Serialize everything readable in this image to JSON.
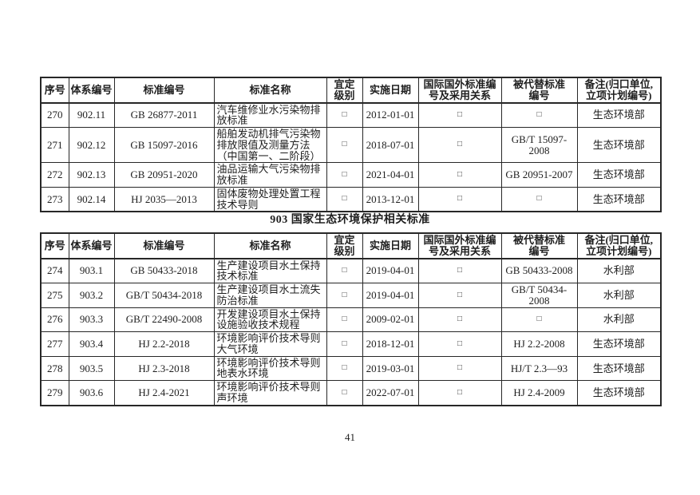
{
  "document": {
    "section_title": "903 国家生态环境保护相关标准",
    "page_number": "41"
  },
  "symbols": {
    "empty_box": "□"
  },
  "columns": [
    "序号",
    "体系编号",
    "标准编号",
    "标准名称",
    "宜定\n级别",
    "实施日期",
    "国际国外标准编\n号及采用关系",
    "被代替标准\n编号",
    "备注(归口单位,\n立项计划编号)"
  ],
  "tables": [
    {
      "section": "902",
      "rows": [
        [
          "270",
          "902.11",
          "GB 26877-2011",
          "汽车维修业水污染物排放标准",
          "□",
          "2012-01-01",
          "□",
          "□",
          "生态环境部"
        ],
        [
          "271",
          "902.12",
          "GB 15097-2016",
          "船舶发动机排气污染物排放限值及测量方法（中国第一、二阶段）",
          "□",
          "2018-07-01",
          "□",
          "GB/T 15097-2008",
          "生态环境部"
        ],
        [
          "272",
          "902.13",
          "GB 20951-2020",
          "油品运输大气污染物排放标准",
          "□",
          "2021-04-01",
          "□",
          "GB 20951-2007",
          "生态环境部"
        ],
        [
          "273",
          "902.14",
          "HJ 2035—2013",
          "固体废物处理处置工程技术导则",
          "□",
          "2013-12-01",
          "□",
          "□",
          "生态环境部"
        ]
      ]
    },
    {
      "section": "903",
      "rows": [
        [
          "274",
          "903.1",
          "GB 50433-2018",
          "生产建设项目水土保持技术标准",
          "□",
          "2019-04-01",
          "□",
          "GB 50433-2008",
          "水利部"
        ],
        [
          "275",
          "903.2",
          "GB/T 50434-2018",
          "生产建设项目水土流失防治标准",
          "□",
          "2019-04-01",
          "□",
          "GB/T 50434-2008",
          "水利部"
        ],
        [
          "276",
          "903.3",
          "GB/T 22490-2008",
          "开发建设项目水土保持设施验收技术规程",
          "□",
          "2009-02-01",
          "□",
          "□",
          "水利部"
        ],
        [
          "277",
          "903.4",
          "HJ 2.2-2018",
          "环境影响评价技术导则 大气环境",
          "□",
          "2018-12-01",
          "□",
          "HJ 2.2-2008",
          "生态环境部"
        ],
        [
          "278",
          "903.5",
          "HJ 2.3-2018",
          "环境影响评价技术导则 地表水环境",
          "□",
          "2019-03-01",
          "□",
          "HJ/T 2.3—93",
          "生态环境部"
        ],
        [
          "279",
          "903.6",
          "HJ 2.4-2021",
          "环境影响评价技术导则 声环境",
          "□",
          "2022-07-01",
          "□",
          "HJ 2.4-2009",
          "生态环境部"
        ]
      ]
    }
  ]
}
